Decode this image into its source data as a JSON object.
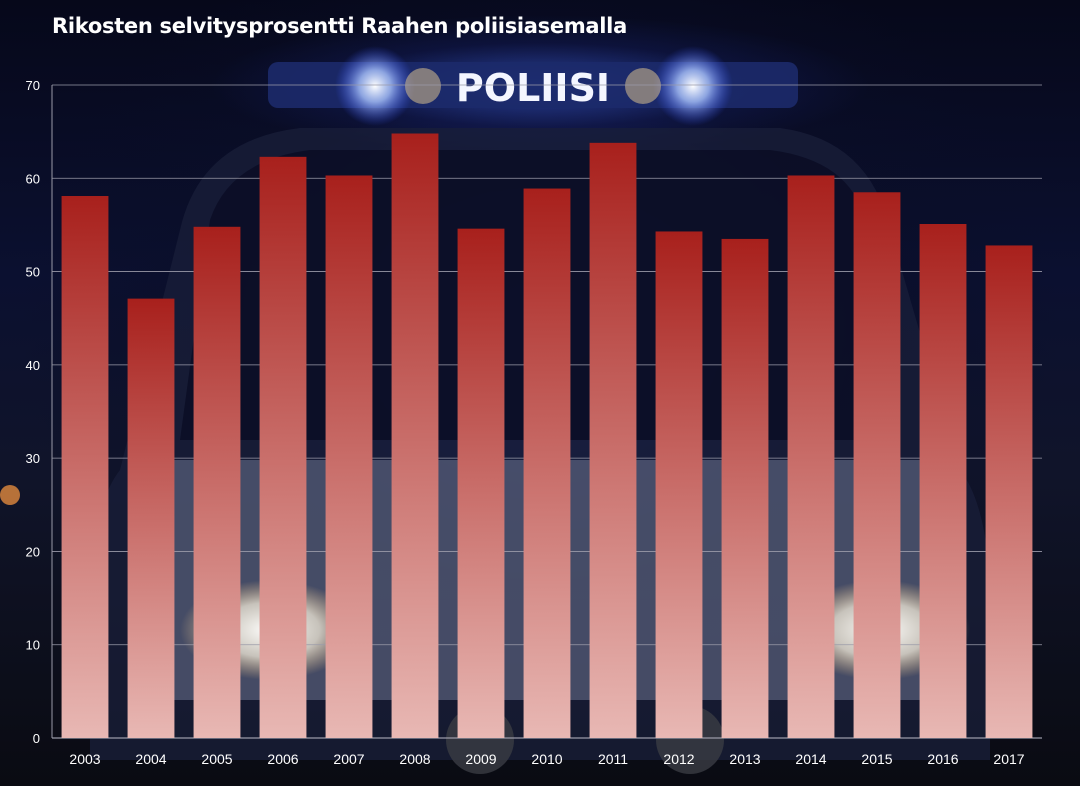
{
  "chart_data": {
    "type": "bar",
    "title": "Rikosten selvitysprosentti Raahen poliisiasemalla",
    "xlabel": "",
    "ylabel": "",
    "categories": [
      "2003",
      "2004",
      "2005",
      "2006",
      "2007",
      "2008",
      "2009",
      "2010",
      "2011",
      "2012",
      "2013",
      "2014",
      "2015",
      "2016",
      "2017"
    ],
    "values": [
      58.1,
      47.1,
      54.8,
      62.3,
      60.3,
      64.8,
      54.6,
      58.9,
      63.8,
      54.3,
      53.5,
      60.3,
      58.5,
      55.1,
      52.8
    ],
    "ylim": [
      0,
      70
    ],
    "yticks": [
      0,
      10,
      20,
      30,
      40,
      50,
      60,
      70
    ],
    "grid": true,
    "legend": "none",
    "colors": {
      "bar_top": "#a8201c",
      "bar_bottom": "#e8b8b4",
      "grid": "#9a9aa8",
      "text": "#ffffff"
    }
  },
  "background": {
    "lightbar_text": "POLIISI",
    "icon": "police-car-photo"
  }
}
